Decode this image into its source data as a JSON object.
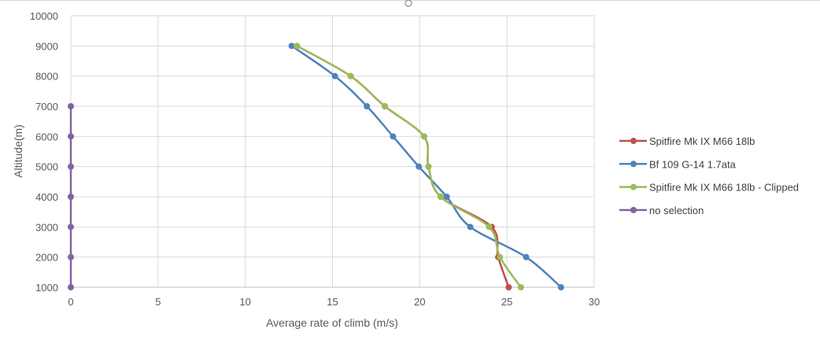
{
  "chart_data": {
    "type": "line",
    "title": "",
    "xlabel": "Average rate of climb (m/s)",
    "ylabel": "Altitude(m)",
    "xlim": [
      0,
      30
    ],
    "ylim": [
      1000,
      10000
    ],
    "xticks": [
      "0",
      "5",
      "10",
      "15",
      "20",
      "25",
      "30"
    ],
    "yticks": [
      "1000",
      "2000",
      "3000",
      "4000",
      "5000",
      "6000",
      "7000",
      "8000",
      "9000",
      "10000"
    ],
    "grid": true,
    "legend_position": "right",
    "series": [
      {
        "name": "Spitfire Mk IX M66 18lb",
        "color": "#c0504d",
        "points": [
          [
            12.96,
            9000
          ],
          [
            16.04,
            8000
          ],
          [
            18.0,
            7000
          ],
          [
            20.25,
            6000
          ],
          [
            20.5,
            5000
          ],
          [
            21.2,
            4000
          ],
          [
            24.13,
            3000
          ],
          [
            24.5,
            2000
          ],
          [
            25.1,
            1000
          ]
        ]
      },
      {
        "name": "Bf 109 G-14 1.7ata",
        "color": "#4f81bd",
        "points": [
          [
            12.66,
            9000
          ],
          [
            15.14,
            8000
          ],
          [
            16.97,
            7000
          ],
          [
            18.47,
            6000
          ],
          [
            19.95,
            5000
          ],
          [
            21.55,
            4000
          ],
          [
            22.9,
            3000
          ],
          [
            26.1,
            2000
          ],
          [
            28.1,
            1000
          ]
        ]
      },
      {
        "name": "Spitfire Mk IX M66 18lb - Clipped",
        "color": "#9bbb59",
        "points": [
          [
            12.96,
            9000
          ],
          [
            16.04,
            8000
          ],
          [
            18.0,
            7000
          ],
          [
            20.25,
            6000
          ],
          [
            20.5,
            5000
          ],
          [
            21.2,
            4000
          ],
          [
            23.98,
            3000
          ],
          [
            24.6,
            2000
          ],
          [
            25.8,
            1000
          ]
        ]
      },
      {
        "name": "no selection",
        "color": "#8064a2",
        "points": [
          [
            0,
            7000
          ],
          [
            0,
            6000
          ],
          [
            0,
            5000
          ],
          [
            0,
            4000
          ],
          [
            0,
            3000
          ],
          [
            0,
            2000
          ],
          [
            0,
            1000
          ]
        ]
      }
    ]
  }
}
